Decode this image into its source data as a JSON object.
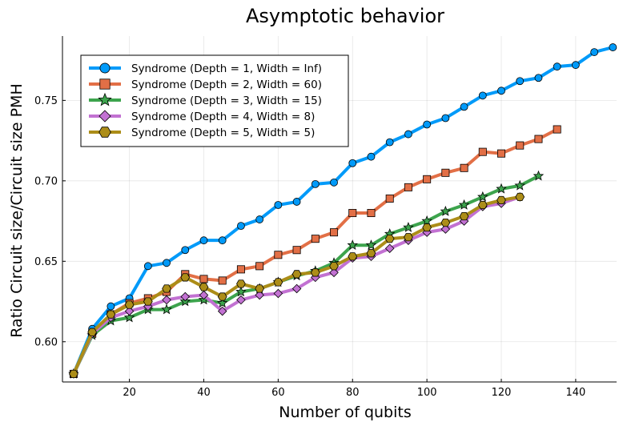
{
  "chart_data": {
    "type": "line",
    "title": "Asymptotic behavior",
    "xlabel": "Number of qubits",
    "ylabel": "Ratio Circuit size/Circuit size PMH",
    "xlim": [
      2,
      151
    ],
    "ylim": [
      0.575,
      0.79
    ],
    "xticks": [
      20,
      40,
      60,
      80,
      100,
      120,
      140
    ],
    "yticks": [
      0.6,
      0.65,
      0.7,
      0.75
    ],
    "xtick_labels": [
      "20",
      "40",
      "60",
      "80",
      "100",
      "120",
      "140"
    ],
    "ytick_labels": [
      "0.60",
      "0.65",
      "0.70",
      "0.75"
    ],
    "grid": true,
    "legend_position": "top-left",
    "series": [
      {
        "name": "Syndrome (Depth = 1, Width = Inf)",
        "color": "#009AF9",
        "marker": "circle",
        "x": [
          5,
          10,
          15,
          20,
          25,
          30,
          35,
          40,
          45,
          50,
          55,
          60,
          65,
          70,
          75,
          80,
          85,
          90,
          95,
          100,
          105,
          110,
          115,
          120,
          125,
          130,
          135,
          140,
          145,
          150
        ],
        "y": [
          0.58,
          0.608,
          0.622,
          0.627,
          0.647,
          0.649,
          0.657,
          0.663,
          0.663,
          0.672,
          0.676,
          0.685,
          0.687,
          0.698,
          0.699,
          0.711,
          0.715,
          0.724,
          0.729,
          0.735,
          0.739,
          0.746,
          0.753,
          0.756,
          0.762,
          0.764,
          0.771,
          0.772,
          0.78,
          0.783
        ]
      },
      {
        "name": "Syndrome (Depth = 2, Width = 60)",
        "color": "#E26F46",
        "marker": "square",
        "x": [
          5,
          10,
          15,
          20,
          25,
          30,
          35,
          40,
          45,
          50,
          55,
          60,
          65,
          70,
          75,
          80,
          85,
          90,
          95,
          100,
          105,
          110,
          115,
          120,
          125,
          130,
          135
        ],
        "y": [
          0.58,
          0.605,
          0.617,
          0.624,
          0.627,
          0.631,
          0.642,
          0.639,
          0.638,
          0.645,
          0.647,
          0.654,
          0.657,
          0.664,
          0.668,
          0.68,
          0.68,
          0.689,
          0.696,
          0.701,
          0.705,
          0.708,
          0.718,
          0.717,
          0.722,
          0.726,
          0.732
        ]
      },
      {
        "name": "Syndrome (Depth = 3, Width = 15)",
        "color": "#3DA44D",
        "marker": "star",
        "x": [
          5,
          10,
          15,
          20,
          25,
          30,
          35,
          40,
          45,
          50,
          55,
          60,
          65,
          70,
          75,
          80,
          85,
          90,
          95,
          100,
          105,
          110,
          115,
          120,
          125,
          130
        ],
        "y": [
          0.58,
          0.604,
          0.613,
          0.615,
          0.62,
          0.62,
          0.625,
          0.626,
          0.624,
          0.631,
          0.633,
          0.637,
          0.641,
          0.644,
          0.649,
          0.66,
          0.66,
          0.667,
          0.671,
          0.675,
          0.681,
          0.685,
          0.69,
          0.695,
          0.697,
          0.703
        ]
      },
      {
        "name": "Syndrome (Depth = 4, Width = 8)",
        "color": "#C271D2",
        "marker": "diamond",
        "x": [
          5,
          10,
          15,
          20,
          25,
          30,
          35,
          40,
          45,
          50,
          55,
          60,
          65,
          70,
          75,
          80,
          85,
          90,
          95,
          100,
          105,
          110,
          115,
          120,
          125
        ],
        "y": [
          0.58,
          0.605,
          0.615,
          0.619,
          0.622,
          0.626,
          0.628,
          0.629,
          0.619,
          0.626,
          0.629,
          0.63,
          0.633,
          0.64,
          0.643,
          0.652,
          0.653,
          0.658,
          0.663,
          0.668,
          0.67,
          0.675,
          0.684,
          0.686,
          0.69
        ]
      },
      {
        "name": "Syndrome (Depth = 5, Width = 5)",
        "color": "#AC8D18",
        "marker": "hexagon",
        "x": [
          5,
          10,
          15,
          20,
          25,
          30,
          35,
          40,
          45,
          50,
          55,
          60,
          65,
          70,
          75,
          80,
          85,
          90,
          95,
          100,
          105,
          110,
          115,
          120,
          125
        ],
        "y": [
          0.58,
          0.606,
          0.617,
          0.623,
          0.625,
          0.633,
          0.64,
          0.634,
          0.628,
          0.636,
          0.633,
          0.637,
          0.642,
          0.643,
          0.647,
          0.653,
          0.655,
          0.664,
          0.665,
          0.671,
          0.674,
          0.678,
          0.685,
          0.688,
          0.69
        ]
      }
    ]
  }
}
